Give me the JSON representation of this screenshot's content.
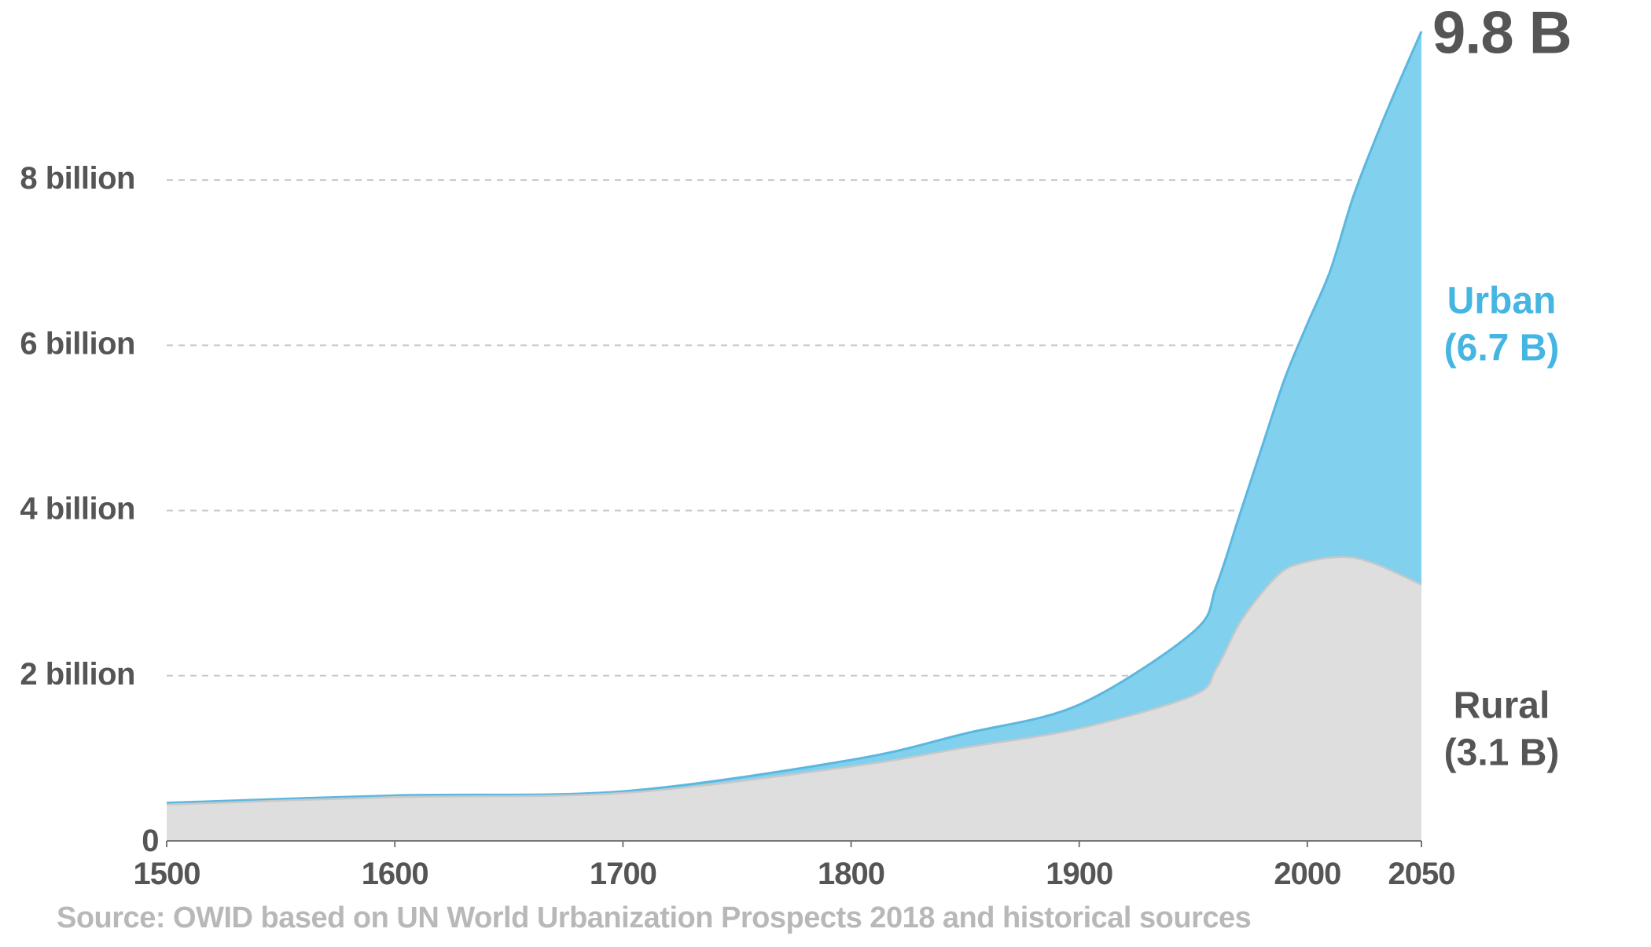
{
  "chart_data": {
    "type": "area",
    "stacked": true,
    "x": [
      1500,
      1600,
      1700,
      1800,
      1850,
      1900,
      1950,
      1960,
      1970,
      1980,
      1990,
      2000,
      2010,
      2020,
      2030,
      2040,
      2050
    ],
    "series": [
      {
        "name": "Rural",
        "label_lines": [
          "Rural",
          "(3.1 B)"
        ],
        "color": "#dedede",
        "edge_color": "#c8c8c8",
        "values": [
          0.44,
          0.53,
          0.58,
          0.9,
          1.13,
          1.36,
          1.76,
          2.08,
          2.62,
          3.0,
          3.28,
          3.38,
          3.43,
          3.43,
          3.35,
          3.23,
          3.1
        ]
      },
      {
        "name": "Urban",
        "label_lines": [
          "Urban",
          "(6.7 B)"
        ],
        "color": "#81d0ee",
        "edge_color": "#5ab8e0",
        "values": [
          0.02,
          0.02,
          0.02,
          0.08,
          0.17,
          0.29,
          0.77,
          1.0,
          1.3,
          1.76,
          2.31,
          2.88,
          3.47,
          4.36,
          5.16,
          5.94,
          6.7
        ]
      }
    ],
    "y_ticks": [
      {
        "value": 0,
        "label": "0"
      },
      {
        "value": 2,
        "label": "2 billion"
      },
      {
        "value": 4,
        "label": "4 billion"
      },
      {
        "value": 6,
        "label": "6 billion"
      },
      {
        "value": 8,
        "label": "8 billion"
      }
    ],
    "x_ticks": [
      {
        "value": 1500,
        "label": "1500"
      },
      {
        "value": 1600,
        "label": "1600"
      },
      {
        "value": 1700,
        "label": "1700"
      },
      {
        "value": 1800,
        "label": "1800"
      },
      {
        "value": 1900,
        "label": "1900"
      },
      {
        "value": 2000,
        "label": "2000"
      },
      {
        "value": 2050,
        "label": "2050"
      }
    ],
    "xlim": [
      1500,
      2050
    ],
    "ylim": [
      0,
      9.8
    ],
    "grid": "dashed horizontal",
    "total_label": "9.8 B",
    "source": "Source: OWID based on UN World Urbanization Prospects 2018 and historical sources",
    "colors": {
      "axis_text": "#555555",
      "source_text": "#b8b8b8",
      "grid": "#c8c8c8",
      "urban_label": "#45b5e2",
      "rural_label": "#555555"
    }
  }
}
